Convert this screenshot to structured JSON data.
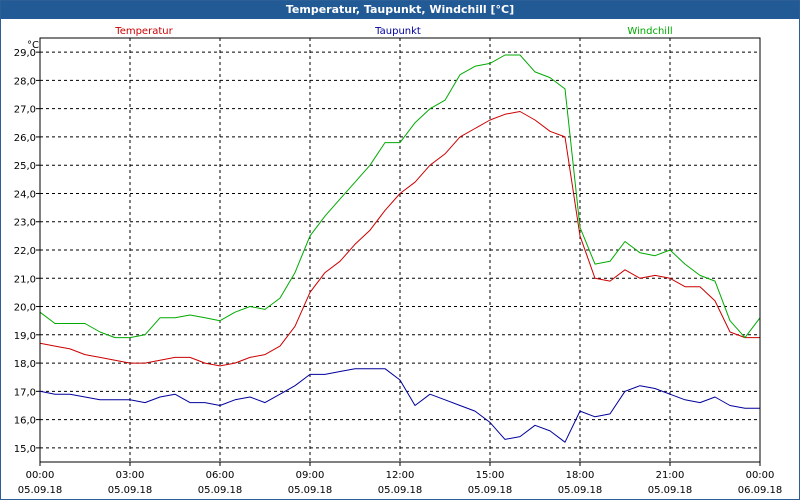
{
  "window": {
    "title": "Temperatur, Taupunkt, Windchill [°C]"
  },
  "chart_data": {
    "type": "line",
    "title": "Temperatur, Taupunkt, Windchill [°C]",
    "ylabel": "°C",
    "xlabel": "",
    "ylim": [
      14.5,
      29.5
    ],
    "xlim": [
      0,
      24
    ],
    "grid": true,
    "y_ticks": [
      "15,0",
      "16,0",
      "17,0",
      "18,0",
      "19,0",
      "20,0",
      "21,0",
      "22,0",
      "23,0",
      "24,0",
      "25,0",
      "26,0",
      "27,0",
      "28,0",
      "29,0"
    ],
    "x_ticks": [
      {
        "time": "00:00",
        "date": "05.09.18"
      },
      {
        "time": "03:00",
        "date": "05.09.18"
      },
      {
        "time": "06:00",
        "date": "05.09.18"
      },
      {
        "time": "09:00",
        "date": "05.09.18"
      },
      {
        "time": "12:00",
        "date": "05.09.18"
      },
      {
        "time": "15:00",
        "date": "05.09.18"
      },
      {
        "time": "18:00",
        "date": "05.09.18"
      },
      {
        "time": "21:00",
        "date": "05.09.18"
      },
      {
        "time": "00:00",
        "date": "06.09.18"
      }
    ],
    "series": [
      {
        "name": "Temperatur",
        "color": "#cc0000",
        "x": [
          0,
          0.5,
          1,
          1.5,
          2,
          2.5,
          3,
          3.5,
          4,
          4.5,
          5,
          5.5,
          6,
          6.5,
          7,
          7.5,
          8,
          8.5,
          9,
          9.5,
          10,
          10.5,
          11,
          11.5,
          12,
          12.5,
          13,
          13.5,
          14,
          14.5,
          15,
          15.5,
          16,
          16.5,
          17,
          17.5,
          18,
          18.5,
          19,
          19.5,
          20,
          20.5,
          21,
          21.5,
          22,
          22.5,
          23,
          23.5,
          24
        ],
        "values": [
          18.7,
          18.6,
          18.5,
          18.3,
          18.2,
          18.1,
          18.0,
          18.0,
          18.1,
          18.2,
          18.2,
          18.0,
          17.9,
          18.0,
          18.2,
          18.3,
          18.6,
          19.3,
          20.5,
          21.2,
          21.6,
          22.2,
          22.7,
          23.4,
          24.0,
          24.4,
          25.0,
          25.4,
          26.0,
          26.3,
          26.6,
          26.8,
          26.9,
          26.6,
          26.2,
          26.0,
          22.5,
          21.0,
          20.9,
          21.3,
          21.0,
          21.1,
          21.0,
          20.7,
          20.7,
          20.2,
          19.1,
          18.9,
          18.9
        ]
      },
      {
        "name": "Taupunkt",
        "color": "#00009c",
        "x": [
          0,
          0.5,
          1,
          1.5,
          2,
          2.5,
          3,
          3.5,
          4,
          4.5,
          5,
          5.5,
          6,
          6.5,
          7,
          7.5,
          8,
          8.5,
          9,
          9.5,
          10,
          10.5,
          11,
          11.5,
          12,
          12.5,
          13,
          13.5,
          14,
          14.5,
          15,
          15.5,
          16,
          16.5,
          17,
          17.5,
          18,
          18.5,
          19,
          19.5,
          20,
          20.5,
          21,
          21.5,
          22,
          22.5,
          23,
          23.5,
          24
        ],
        "values": [
          17.0,
          16.9,
          16.9,
          16.8,
          16.7,
          16.7,
          16.7,
          16.6,
          16.8,
          16.9,
          16.6,
          16.6,
          16.5,
          16.7,
          16.8,
          16.6,
          16.9,
          17.2,
          17.6,
          17.6,
          17.7,
          17.8,
          17.8,
          17.8,
          17.4,
          16.5,
          16.9,
          16.7,
          16.5,
          16.3,
          15.9,
          15.3,
          15.4,
          15.8,
          15.6,
          15.2,
          16.3,
          16.1,
          16.2,
          17.0,
          17.2,
          17.1,
          16.9,
          16.7,
          16.6,
          16.8,
          16.5,
          16.4,
          16.4
        ]
      },
      {
        "name": "Windchill",
        "color": "#00aa00",
        "x": [
          0,
          0.5,
          1,
          1.5,
          2,
          2.5,
          3,
          3.5,
          4,
          4.5,
          5,
          5.5,
          6,
          6.5,
          7,
          7.5,
          8,
          8.5,
          9,
          9.5,
          10,
          10.5,
          11,
          11.5,
          12,
          12.5,
          13,
          13.5,
          14,
          14.5,
          15,
          15.5,
          16,
          16.5,
          17,
          17.5,
          18,
          18.5,
          19,
          19.5,
          20,
          20.5,
          21,
          21.5,
          22,
          22.5,
          23,
          23.5,
          24
        ],
        "values": [
          19.8,
          19.4,
          19.4,
          19.4,
          19.1,
          18.9,
          18.9,
          19.0,
          19.6,
          19.6,
          19.7,
          19.6,
          19.5,
          19.8,
          20.0,
          19.9,
          20.3,
          21.2,
          22.5,
          23.2,
          23.8,
          24.4,
          25.0,
          25.8,
          25.8,
          26.5,
          27.0,
          27.3,
          28.2,
          28.5,
          28.6,
          28.9,
          28.9,
          28.3,
          28.1,
          27.7,
          22.8,
          21.5,
          21.6,
          22.3,
          21.9,
          21.8,
          22.0,
          21.5,
          21.1,
          20.9,
          19.5,
          18.9,
          19.6
        ]
      }
    ]
  }
}
